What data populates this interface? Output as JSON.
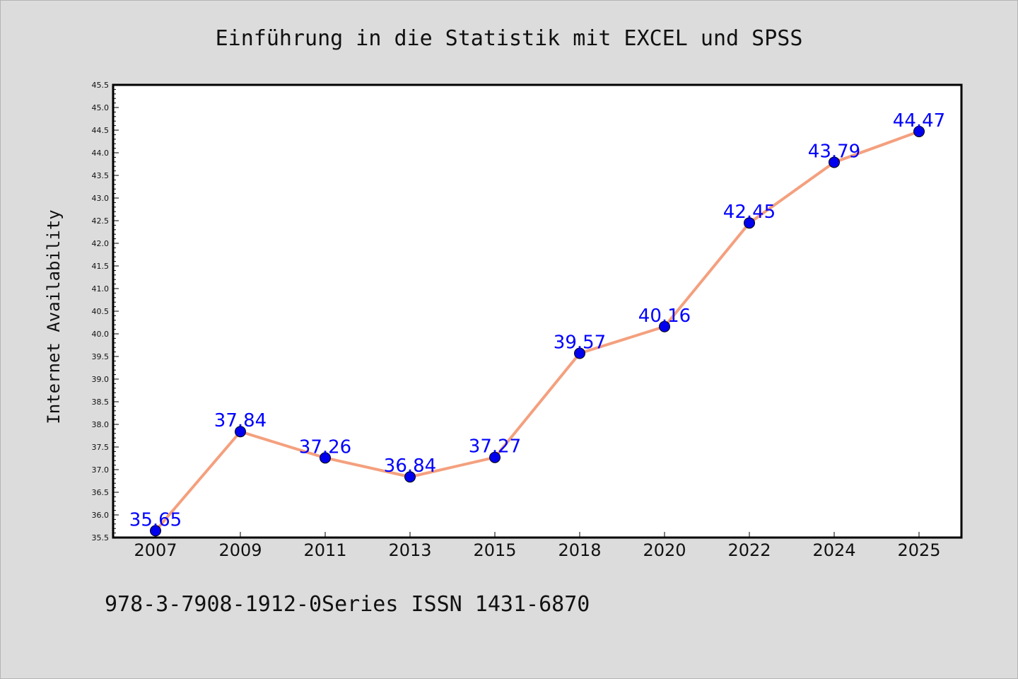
{
  "chart_data": {
    "type": "line",
    "title": "Einführung in die Statistik mit EXCEL und SPSS",
    "ylabel": "Internet Availability",
    "xlabel": "",
    "categories": [
      "2007",
      "2009",
      "2011",
      "2013",
      "2015",
      "2018",
      "2020",
      "2022",
      "2024",
      "2025"
    ],
    "series": [
      {
        "values": [
          35.65,
          37.84,
          37.26,
          36.84,
          37.27,
          39.57,
          40.16,
          42.45,
          43.79,
          44.47
        ],
        "labels": [
          "35.65",
          "37.84",
          "37.26",
          "36.84",
          "37.27",
          "39.57",
          "40.16",
          "42.45",
          "43.79",
          "44.47"
        ],
        "line_color": "#f4a07e",
        "marker_color": "#0000ee",
        "label_color": "#0000ff"
      }
    ],
    "ylim": [
      35.5,
      45.5
    ],
    "yticks": [
      "35.5",
      "36.0",
      "36.5",
      "37.0",
      "37.5",
      "38.0",
      "38.5",
      "39.0",
      "39.5",
      "40.0",
      "40.5",
      "41.0",
      "41.5",
      "42.0",
      "42.5",
      "43.0",
      "43.5",
      "44.0",
      "44.5",
      "45.0",
      "45.5"
    ],
    "grid": false,
    "legend": "none"
  },
  "footer": "978-3-7908-1912-0Series ISSN 1431-6870"
}
